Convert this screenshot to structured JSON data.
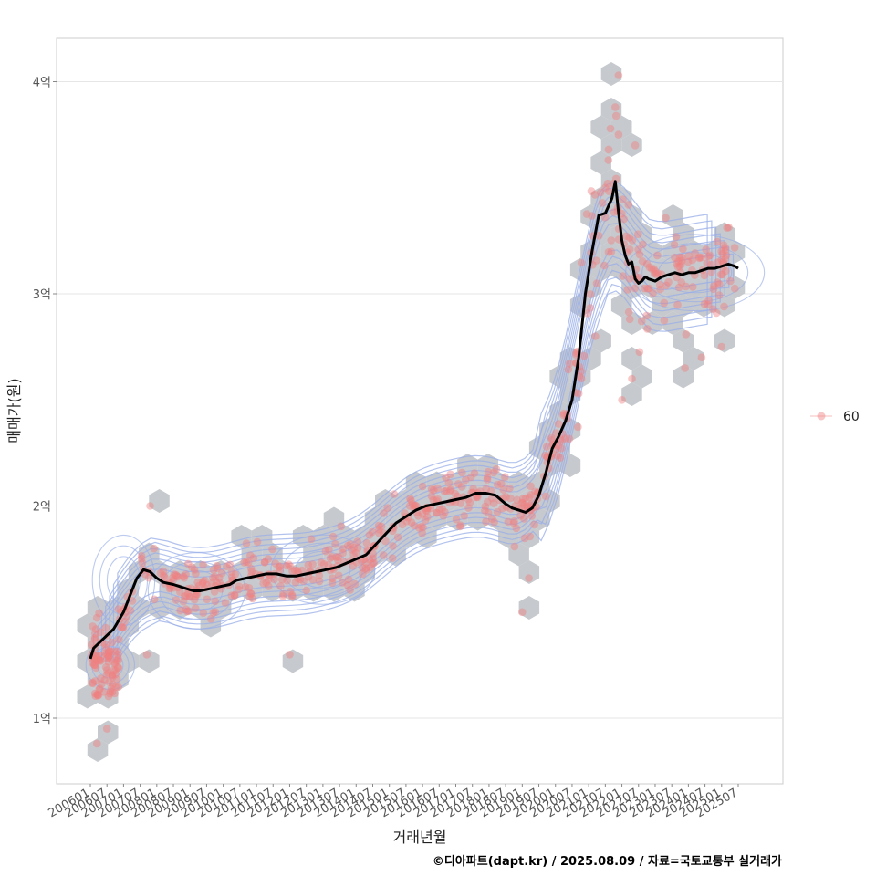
{
  "chart_data": {
    "type": "scatter",
    "xlabel": "거래년월",
    "ylabel": "매매가(원)",
    "caption": "©디아파트(dapt.kr) / 2025.08.09 / 자료=국토교통부 실거래가",
    "x_ticks": [
      "200601",
      "200607",
      "200701",
      "200707",
      "200801",
      "200807",
      "200901",
      "200907",
      "201001",
      "201007",
      "201101",
      "201107",
      "201201",
      "201207",
      "201301",
      "201307",
      "201401",
      "201407",
      "201501",
      "201507",
      "201601",
      "201607",
      "201701",
      "201707",
      "201801",
      "201807",
      "201901",
      "201907",
      "202001",
      "202007",
      "202101",
      "202107",
      "202201",
      "202207",
      "202301",
      "202307",
      "202401",
      "202407",
      "202501",
      "202507"
    ],
    "y_ticks": [
      {
        "value": 1,
        "label": "1억"
      },
      {
        "value": 2,
        "label": "2억"
      },
      {
        "value": 3,
        "label": "3억"
      },
      {
        "value": 4,
        "label": "4억"
      }
    ],
    "xlim": [
      2005.0,
      2027.0
    ],
    "ylim": [
      0.7,
      4.21
    ],
    "legend": {
      "position": "right",
      "entries": [
        "60"
      ]
    },
    "grid": true,
    "colors": {
      "points": "#f08080",
      "hex": "#c3c6ca",
      "contour": "#98aee8",
      "trend": "#000000",
      "panel_border": "#cccccc",
      "grid": "#e6e6e6"
    },
    "series": [
      {
        "type": "line",
        "x": [
          2006.0,
          2006.1,
          2006.3,
          2006.5,
          2006.7,
          2007.0,
          2007.2,
          2007.4,
          2007.6,
          2007.8,
          2008.0,
          2008.2,
          2008.5,
          2008.7,
          2008.9,
          2009.1,
          2009.3,
          2009.6,
          2009.9,
          2010.2,
          2010.4,
          2010.7,
          2011.0,
          2011.3,
          2011.6,
          2011.9,
          2012.2,
          2012.5,
          2012.8,
          2013.1,
          2013.4,
          2013.7,
          2014.0,
          2014.3,
          2014.6,
          2014.9,
          2015.2,
          2015.5,
          2015.8,
          2016.1,
          2016.4,
          2016.7,
          2017.0,
          2017.3,
          2017.6,
          2017.9,
          2018.2,
          2018.5,
          2018.7,
          2018.9,
          2019.1,
          2019.3,
          2019.5,
          2019.7,
          2019.9,
          2020.1,
          2020.3,
          2020.5,
          2020.7,
          2020.9,
          2021.1,
          2021.3,
          2021.5,
          2021.7,
          2021.8,
          2021.9,
          2022.0,
          2022.1,
          2022.2,
          2022.3,
          2022.4,
          2022.5,
          2022.6,
          2022.7,
          2022.8,
          2023.0,
          2023.2,
          2023.4,
          2023.6,
          2023.8,
          2024.0,
          2024.2,
          2024.4,
          2024.6,
          2024.8,
          2025.0,
          2025.2,
          2025.4,
          2025.5
        ],
        "y": [
          1.28,
          1.33,
          1.36,
          1.39,
          1.42,
          1.5,
          1.58,
          1.66,
          1.7,
          1.69,
          1.66,
          1.64,
          1.63,
          1.62,
          1.61,
          1.6,
          1.6,
          1.61,
          1.62,
          1.63,
          1.65,
          1.66,
          1.67,
          1.68,
          1.68,
          1.67,
          1.67,
          1.68,
          1.69,
          1.7,
          1.71,
          1.73,
          1.75,
          1.77,
          1.82,
          1.87,
          1.92,
          1.95,
          1.98,
          2.0,
          2.01,
          2.02,
          2.03,
          2.04,
          2.06,
          2.06,
          2.05,
          2.01,
          1.99,
          1.98,
          1.97,
          1.99,
          2.05,
          2.15,
          2.27,
          2.33,
          2.4,
          2.5,
          2.7,
          3.0,
          3.2,
          3.37,
          3.38,
          3.45,
          3.53,
          3.38,
          3.25,
          3.18,
          3.14,
          3.15,
          3.07,
          3.05,
          3.06,
          3.08,
          3.07,
          3.06,
          3.08,
          3.09,
          3.1,
          3.09,
          3.1,
          3.1,
          3.11,
          3.12,
          3.12,
          3.13,
          3.14,
          3.13,
          3.12
        ]
      }
    ]
  }
}
